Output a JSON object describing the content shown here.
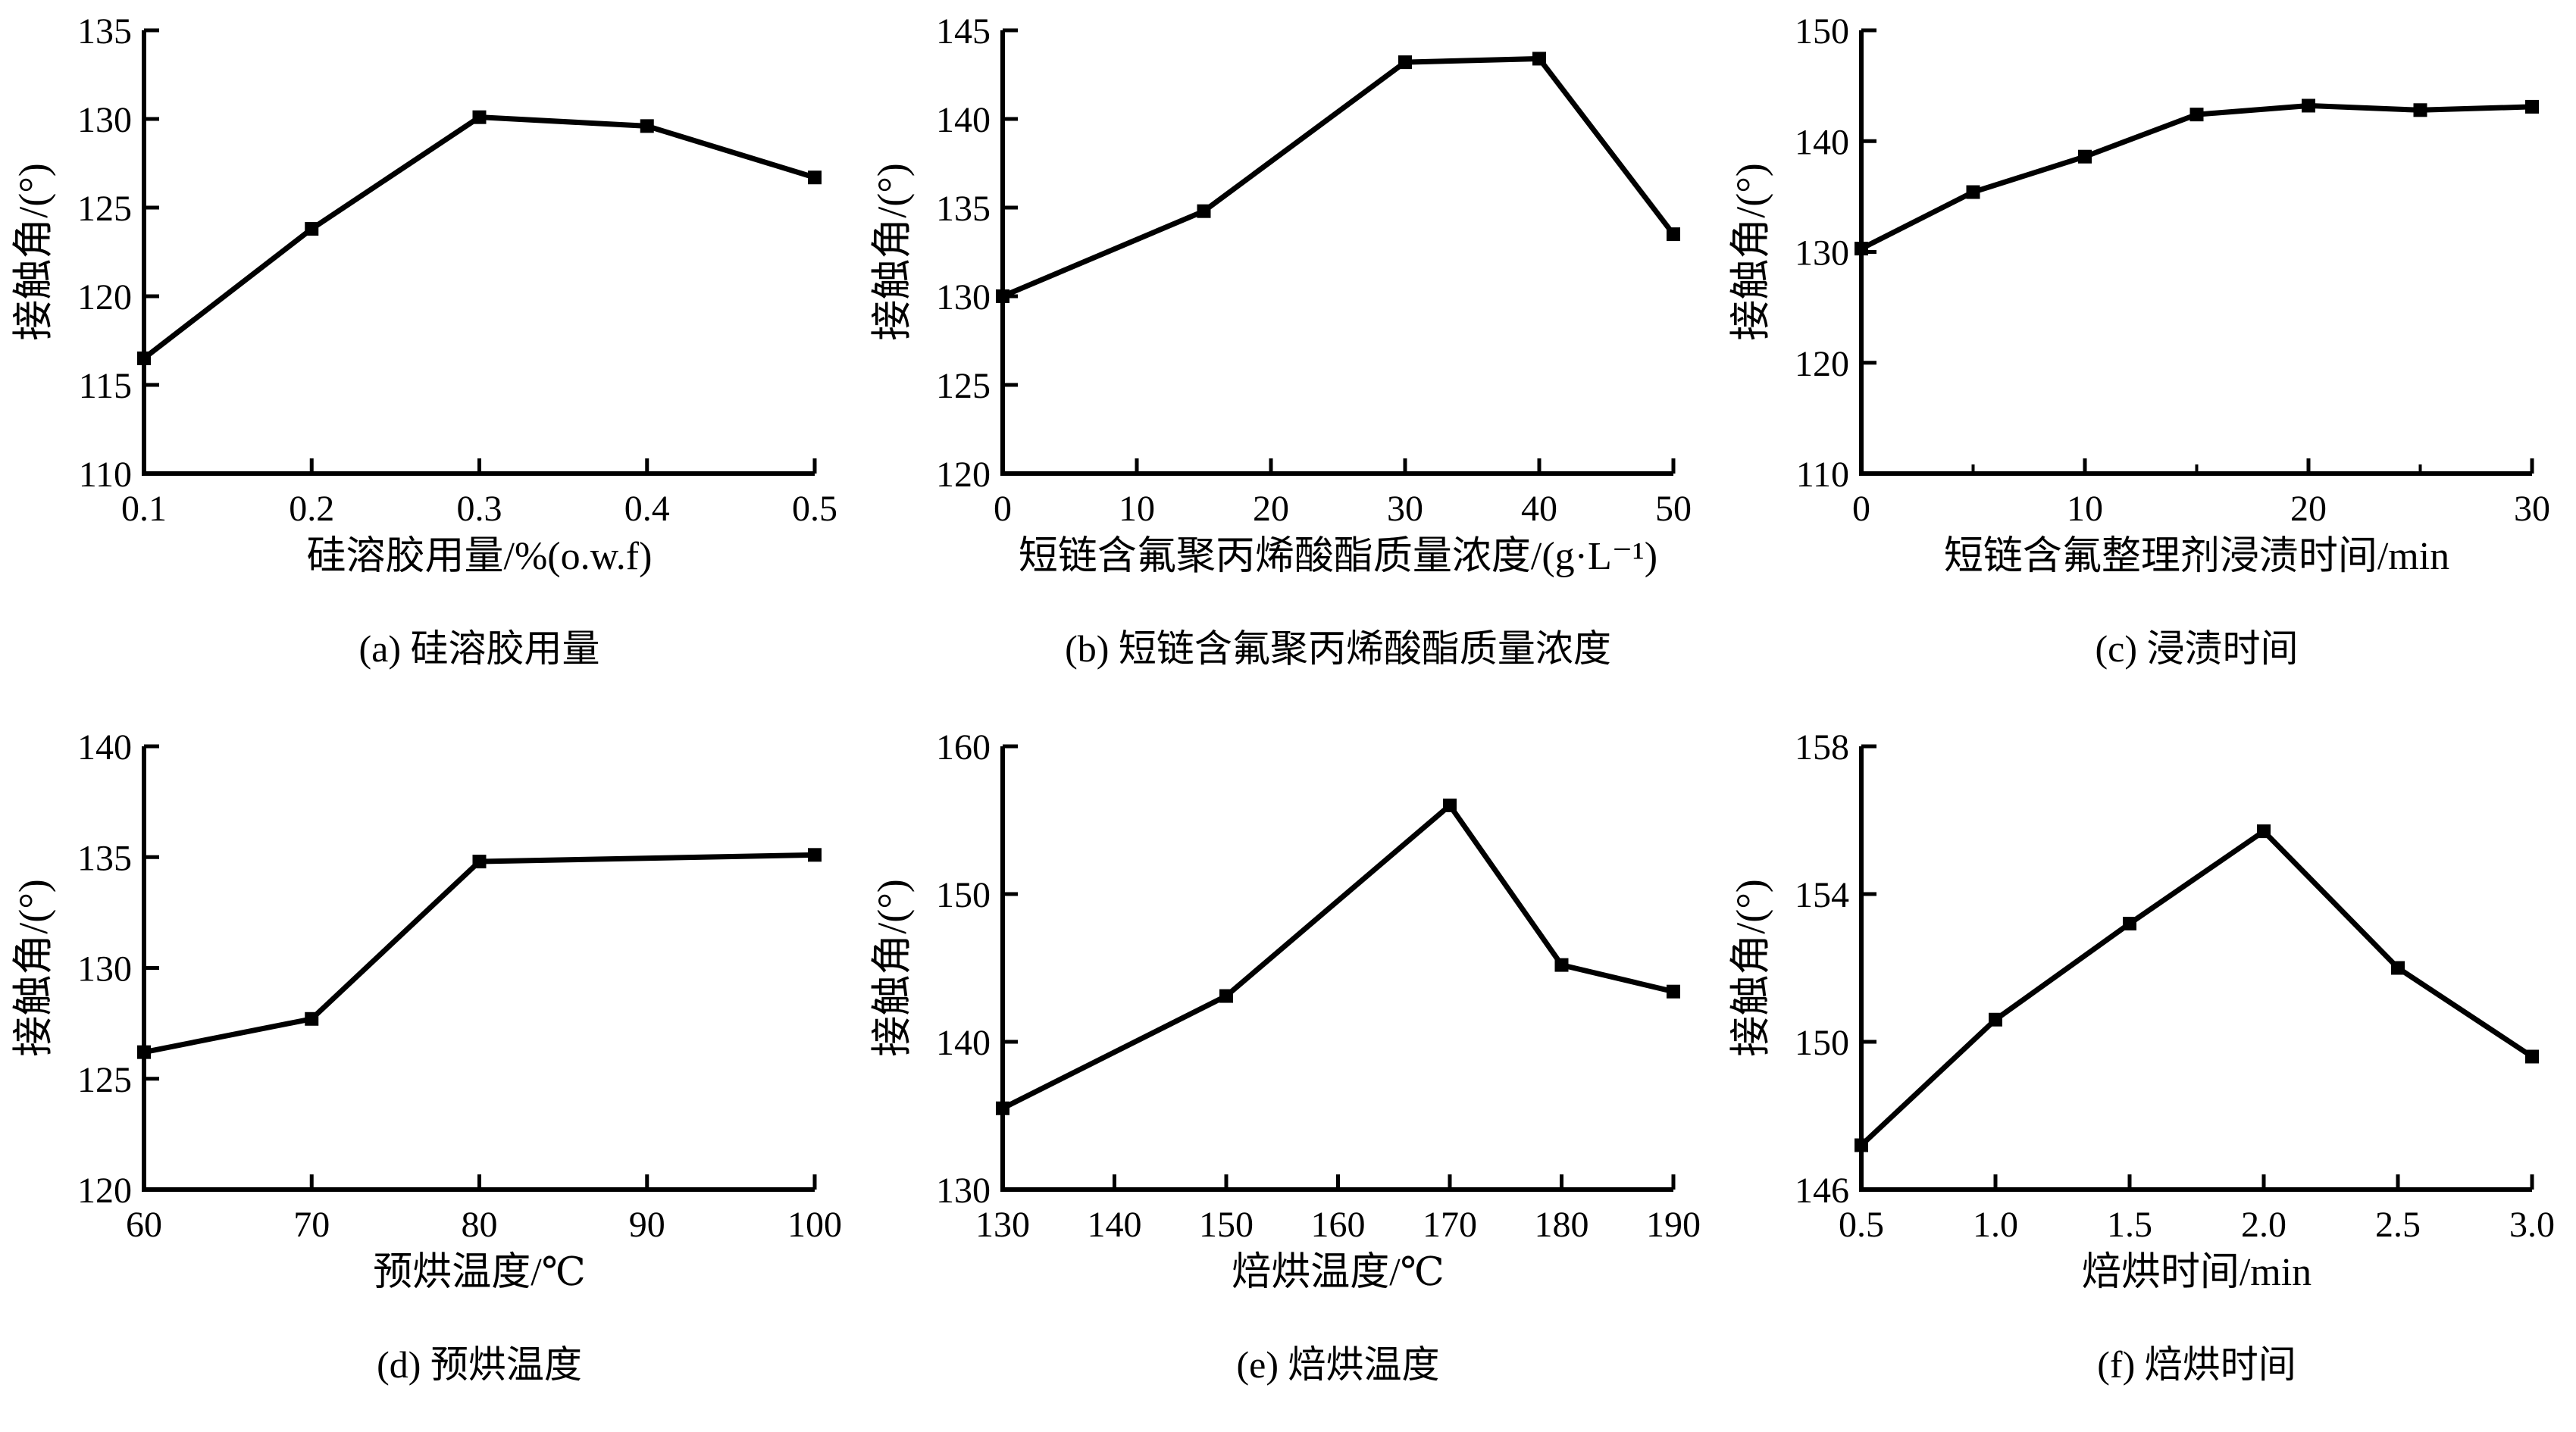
{
  "figure": {
    "background": "#ffffff",
    "line_color": "#000000",
    "axis_color": "#000000",
    "marker": "filled-square",
    "ylabel_shared": "接触角/(°)"
  },
  "chart_data": [
    {
      "panel": "a",
      "type": "line",
      "caption": "(a) 硅溶胶用量",
      "xlabel": "硅溶胶用量/%(o.w.f)",
      "ylabel": "接触角/(°)",
      "x": [
        0.1,
        0.2,
        0.3,
        0.4,
        0.5
      ],
      "y": [
        116.5,
        123.8,
        130.1,
        129.6,
        126.7
      ],
      "xlim": [
        0.1,
        0.5
      ],
      "ylim": [
        110,
        135
      ],
      "xticks": [
        0.1,
        0.2,
        0.3,
        0.4,
        0.5
      ],
      "xtick_labels": [
        "0.1",
        "0.2",
        "0.3",
        "0.4",
        "0.5"
      ],
      "yticks": [
        110,
        115,
        120,
        125,
        130,
        135
      ],
      "ytick_labels": [
        "110",
        "115",
        "120",
        "125",
        "130",
        "135"
      ],
      "x_minor_ticks": []
    },
    {
      "panel": "b",
      "type": "line",
      "caption": "(b) 短链含氟聚丙烯酸酯质量浓度",
      "xlabel": "短链含氟聚丙烯酸酯质量浓度/(g·L⁻¹)",
      "ylabel": "接触角/(°)",
      "x": [
        0,
        15,
        30,
        40,
        50
      ],
      "y": [
        130.0,
        134.8,
        143.2,
        143.4,
        133.5
      ],
      "xlim": [
        0,
        50
      ],
      "ylim": [
        120,
        145
      ],
      "xticks": [
        0,
        10,
        20,
        30,
        40,
        50
      ],
      "xtick_labels": [
        "0",
        "10",
        "20",
        "30",
        "40",
        "50"
      ],
      "yticks": [
        120,
        125,
        130,
        135,
        140,
        145
      ],
      "ytick_labels": [
        "120",
        "125",
        "130",
        "135",
        "140",
        "145"
      ],
      "x_minor_ticks": []
    },
    {
      "panel": "c",
      "type": "line",
      "caption": "(c) 浸渍时间",
      "xlabel": "短链含氟整理剂浸渍时间/min",
      "ylabel": "接触角/(°)",
      "x": [
        0,
        5,
        10,
        15,
        20,
        25,
        30
      ],
      "y": [
        130.3,
        135.4,
        138.6,
        142.4,
        143.2,
        142.8,
        143.1
      ],
      "xlim": [
        0,
        30
      ],
      "ylim": [
        110,
        150
      ],
      "xticks": [
        0,
        10,
        20,
        30
      ],
      "xtick_labels": [
        "0",
        "10",
        "20",
        "30"
      ],
      "yticks": [
        110,
        120,
        130,
        140,
        150
      ],
      "ytick_labels": [
        "110",
        "120",
        "130",
        "140",
        "150"
      ],
      "x_minor_ticks": [
        5,
        15,
        25
      ]
    },
    {
      "panel": "d",
      "type": "line",
      "caption": "(d) 预烘温度",
      "xlabel": "预烘温度/℃",
      "ylabel": "接触角/(°)",
      "x": [
        60,
        70,
        80,
        100
      ],
      "y": [
        126.2,
        127.7,
        134.8,
        135.1
      ],
      "xlim": [
        60,
        100
      ],
      "ylim": [
        120,
        140
      ],
      "xticks": [
        60,
        70,
        80,
        90,
        100
      ],
      "xtick_labels": [
        "60",
        "70",
        "80",
        "90",
        "100"
      ],
      "yticks": [
        120,
        125,
        130,
        135,
        140
      ],
      "ytick_labels": [
        "120",
        "125",
        "130",
        "135",
        "140"
      ],
      "x_minor_ticks": []
    },
    {
      "panel": "e",
      "type": "line",
      "caption": "(e) 焙烘温度",
      "xlabel": "焙烘温度/℃",
      "ylabel": "接触角/(°)",
      "x": [
        130,
        150,
        170,
        180,
        190
      ],
      "y": [
        135.5,
        143.1,
        156.0,
        145.2,
        143.4
      ],
      "xlim": [
        130,
        190
      ],
      "ylim": [
        130,
        160
      ],
      "xticks": [
        130,
        140,
        150,
        160,
        170,
        180,
        190
      ],
      "xtick_labels": [
        "130",
        "140",
        "150",
        "160",
        "170",
        "180",
        "190"
      ],
      "yticks": [
        130,
        140,
        150,
        160
      ],
      "ytick_labels": [
        "130",
        "140",
        "150",
        "160"
      ],
      "x_minor_ticks": []
    },
    {
      "panel": "f",
      "type": "line",
      "caption": "(f) 焙烘时间",
      "xlabel": "焙烘时间/min",
      "ylabel": "接触角/(°)",
      "x": [
        0.5,
        1.0,
        1.5,
        2.0,
        2.5,
        3.0
      ],
      "y": [
        147.2,
        150.6,
        153.2,
        155.7,
        152.0,
        149.6
      ],
      "xlim": [
        0.5,
        3.0
      ],
      "ylim": [
        146,
        158
      ],
      "xticks": [
        0.5,
        1.0,
        1.5,
        2.0,
        2.5,
        3.0
      ],
      "xtick_labels": [
        "0.5",
        "1.0",
        "1.5",
        "2.0",
        "2.5",
        "3.0"
      ],
      "yticks": [
        146,
        150,
        154,
        158
      ],
      "ytick_labels": [
        "146",
        "150",
        "154",
        "158"
      ],
      "x_minor_ticks": []
    }
  ]
}
